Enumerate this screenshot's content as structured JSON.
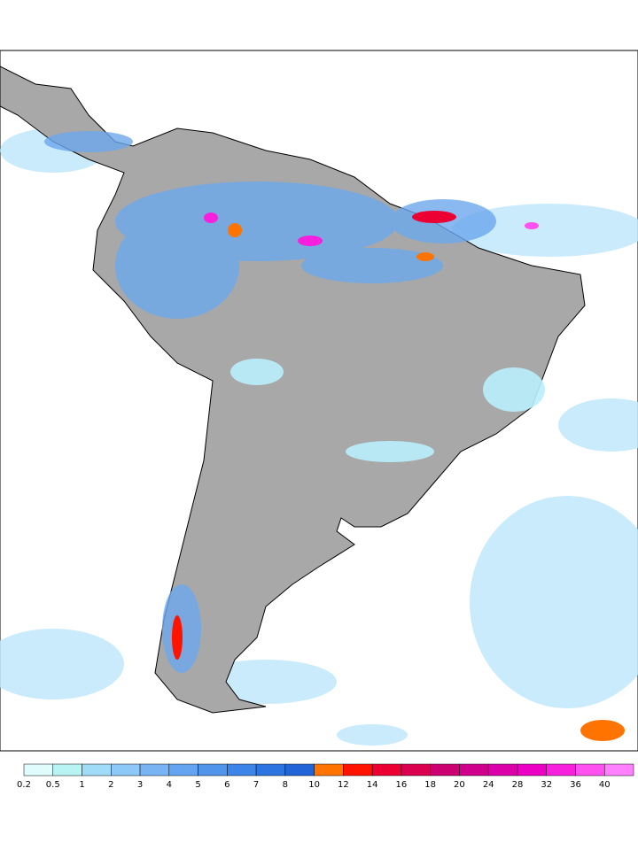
{
  "colorbar": {
    "levels": [
      0.2,
      0.5,
      1,
      2,
      3,
      4,
      5,
      6,
      7,
      8,
      10,
      12,
      14,
      16,
      18,
      20,
      24,
      28,
      32,
      36,
      40
    ],
    "colors": [
      "#e0fcfc",
      "#b8f4f4",
      "#a0dcf8",
      "#8cc8f8",
      "#78b4f4",
      "#64a4f0",
      "#5094ec",
      "#3c84e8",
      "#2c74e0",
      "#2064d8",
      "#ff7400",
      "#ff1400",
      "#ec0034",
      "#dc0050",
      "#cc0070",
      "#d0008c",
      "#dc00a8",
      "#ec00c4",
      "#f820dc",
      "#ff50f0",
      "#ff80ff"
    ]
  }
}
